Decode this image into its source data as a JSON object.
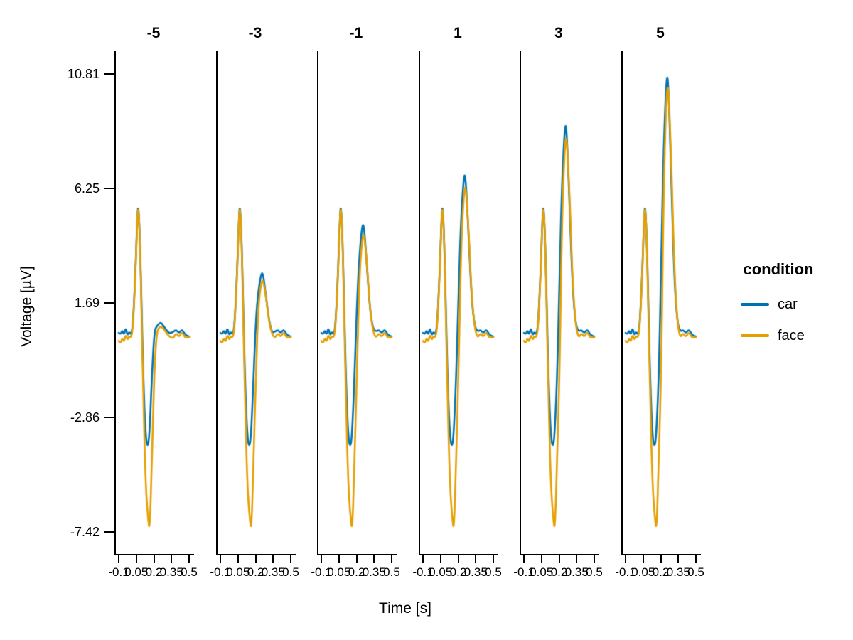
{
  "chart_data": {
    "type": "line",
    "title": "",
    "xlabel": "Time [s]",
    "ylabel": "Voltage [µV]",
    "grid": false,
    "legend": {
      "position": "right",
      "title": "condition",
      "entries": [
        {
          "label": "car",
          "color": "#0072B2"
        },
        {
          "label": "face",
          "color": "#E69F00"
        }
      ]
    },
    "xlim": [
      -0.1,
      0.5
    ],
    "ylim": [
      -8.35,
      11.8
    ],
    "x_tick_values": [
      -0.1,
      0.05,
      0.2,
      0.35,
      0.5
    ],
    "x_tick_labels": [
      "-0.1",
      "0.05",
      "0.2",
      "0.35",
      "0.5"
    ],
    "y_tick_values": [
      10.81,
      6.25,
      1.69,
      -2.86,
      -7.42
    ],
    "y_tick_labels": [
      "10.81",
      "6.25",
      "1.69",
      "-2.86",
      "-7.42"
    ],
    "facet_variable_values": [
      "-5",
      "-3",
      "-1",
      "1",
      "3",
      "5"
    ],
    "x": [
      -0.1,
      -0.085,
      -0.07,
      -0.055,
      -0.04,
      -0.025,
      -0.01,
      0.005,
      0.02,
      0.04,
      0.06,
      0.068,
      0.08,
      0.095,
      0.11,
      0.13,
      0.15,
      0.165,
      0.185,
      0.205,
      0.225,
      0.25,
      0.265,
      0.29,
      0.315,
      0.34,
      0.365,
      0.39,
      0.415,
      0.44,
      0.465,
      0.5
    ],
    "facets": [
      {
        "label": "-5",
        "series": [
          {
            "name": "car",
            "values": [
              0.5,
              0.42,
              0.62,
              0.4,
              0.72,
              0.38,
              0.55,
              0.42,
              0.75,
              2.6,
              5.3,
              5.55,
              4.4,
              1.6,
              -1.4,
              -3.7,
              -4.1,
              -3.3,
              -1.0,
              0.59,
              0.77,
              0.9,
              0.89,
              0.72,
              0.55,
              0.47,
              0.55,
              0.62,
              0.48,
              0.65,
              0.42,
              0.35
            ]
          },
          {
            "name": "face",
            "values": [
              0.18,
              0.05,
              0.3,
              0.12,
              0.45,
              0.2,
              0.38,
              0.3,
              0.65,
              2.5,
              5.25,
              5.5,
              4.35,
              1.3,
              -2.2,
              -5.6,
              -6.9,
              -7.42,
              -4.2,
              -0.9,
              0.57,
              0.74,
              0.75,
              0.62,
              0.43,
              0.33,
              0.28,
              0.5,
              0.32,
              0.55,
              0.3,
              0.32
            ]
          }
        ]
      },
      {
        "label": "-3",
        "series": [
          {
            "name": "car",
            "values": [
              0.5,
              0.42,
              0.62,
              0.4,
              0.72,
              0.38,
              0.55,
              0.42,
              0.75,
              2.6,
              5.3,
              5.55,
              4.4,
              1.6,
              -1.4,
              -3.7,
              -4.1,
              -3.3,
              -1.0,
              1.19,
              2.21,
              2.9,
              2.83,
              1.92,
              0.99,
              0.5,
              0.55,
              0.62,
              0.48,
              0.65,
              0.42,
              0.35
            ]
          },
          {
            "name": "face",
            "values": [
              0.18,
              0.05,
              0.3,
              0.12,
              0.45,
              0.2,
              0.38,
              0.3,
              0.65,
              2.5,
              5.25,
              5.5,
              4.35,
              1.3,
              -2.2,
              -5.6,
              -6.9,
              -7.42,
              -4.2,
              -0.9,
              1.68,
              2.53,
              2.6,
              1.91,
              0.94,
              0.46,
              0.28,
              0.5,
              0.32,
              0.55,
              0.3,
              0.32
            ]
          }
        ]
      },
      {
        "label": "-1",
        "series": [
          {
            "name": "car",
            "values": [
              0.5,
              0.42,
              0.62,
              0.4,
              0.72,
              0.38,
              0.55,
              0.42,
              0.75,
              2.6,
              5.3,
              5.55,
              4.4,
              1.6,
              -1.4,
              -3.7,
              -4.1,
              -3.3,
              -1.0,
              1.77,
              3.62,
              4.85,
              4.72,
              3.09,
              1.42,
              0.67,
              0.55,
              0.62,
              0.48,
              0.65,
              0.42,
              0.35
            ]
          },
          {
            "name": "face",
            "values": [
              0.18,
              0.05,
              0.3,
              0.12,
              0.45,
              0.2,
              0.38,
              0.3,
              0.65,
              2.5,
              5.25,
              5.5,
              4.35,
              1.3,
              -2.2,
              -5.6,
              -6.9,
              -7.42,
              -4.2,
              -0.9,
              2.79,
              4.33,
              4.45,
              3.21,
              1.46,
              0.59,
              0.28,
              0.5,
              0.32,
              0.55,
              0.3,
              0.32
            ]
          }
        ]
      },
      {
        "label": "1",
        "series": [
          {
            "name": "car",
            "values": [
              0.5,
              0.42,
              0.62,
              0.4,
              0.72,
              0.38,
              0.55,
              0.42,
              0.75,
              2.6,
              5.3,
              5.55,
              4.4,
              1.6,
              -1.4,
              -3.7,
              -4.1,
              -3.3,
              -1.0,
              2.37,
              5.06,
              6.85,
              6.66,
              4.29,
              1.86,
              0.77,
              0.55,
              0.62,
              0.48,
              0.65,
              0.42,
              0.35
            ]
          },
          {
            "name": "face",
            "values": [
              0.18,
              0.05,
              0.3,
              0.12,
              0.45,
              0.2,
              0.38,
              0.3,
              0.65,
              2.5,
              5.25,
              5.5,
              4.35,
              1.3,
              -2.2,
              -5.6,
              -6.9,
              -7.42,
              -4.2,
              -0.9,
              3.93,
              6.17,
              6.35,
              4.54,
              1.99,
              0.72,
              0.28,
              0.5,
              0.32,
              0.55,
              0.3,
              0.32
            ]
          }
        ]
      },
      {
        "label": "3",
        "series": [
          {
            "name": "car",
            "values": [
              0.5,
              0.42,
              0.62,
              0.4,
              0.72,
              0.38,
              0.55,
              0.42,
              0.75,
              2.6,
              5.3,
              5.55,
              4.4,
              1.6,
              -1.4,
              -3.7,
              -4.1,
              -3.3,
              -1.0,
              2.97,
              6.5,
              8.85,
              8.6,
              5.49,
              2.3,
              0.87,
              0.55,
              0.62,
              0.48,
              0.65,
              0.42,
              0.35
            ]
          },
          {
            "name": "face",
            "values": [
              0.18,
              0.05,
              0.3,
              0.12,
              0.45,
              0.2,
              0.38,
              0.3,
              0.65,
              2.5,
              5.25,
              5.5,
              4.35,
              1.3,
              -2.2,
              -5.6,
              -6.9,
              -7.42,
              -4.2,
              -0.9,
              5.13,
              8.11,
              8.35,
              5.94,
              2.55,
              0.86,
              0.28,
              0.5,
              0.32,
              0.55,
              0.3,
              0.32
            ]
          }
        ]
      },
      {
        "label": "5",
        "series": [
          {
            "name": "car",
            "values": [
              0.5,
              0.42,
              0.62,
              0.4,
              0.72,
              0.38,
              0.55,
              0.42,
              0.75,
              2.6,
              5.3,
              5.55,
              4.4,
              1.6,
              -1.4,
              -3.7,
              -4.1,
              -3.3,
              -1.0,
              3.56,
              7.91,
              10.81,
              10.5,
              6.67,
              2.73,
              0.97,
              0.55,
              0.62,
              0.48,
              0.65,
              0.42,
              0.35
            ]
          },
          {
            "name": "face",
            "values": [
              0.18,
              0.05,
              0.3,
              0.12,
              0.45,
              0.2,
              0.38,
              0.3,
              0.65,
              2.5,
              5.25,
              5.5,
              4.35,
              1.3,
              -2.2,
              -5.6,
              -6.9,
              -7.42,
              -4.2,
              -0.9,
              6.36,
              10.1,
              10.4,
              7.37,
              3.13,
              1.01,
              0.28,
              0.5,
              0.32,
              0.55,
              0.3,
              0.32
            ]
          }
        ]
      }
    ]
  }
}
